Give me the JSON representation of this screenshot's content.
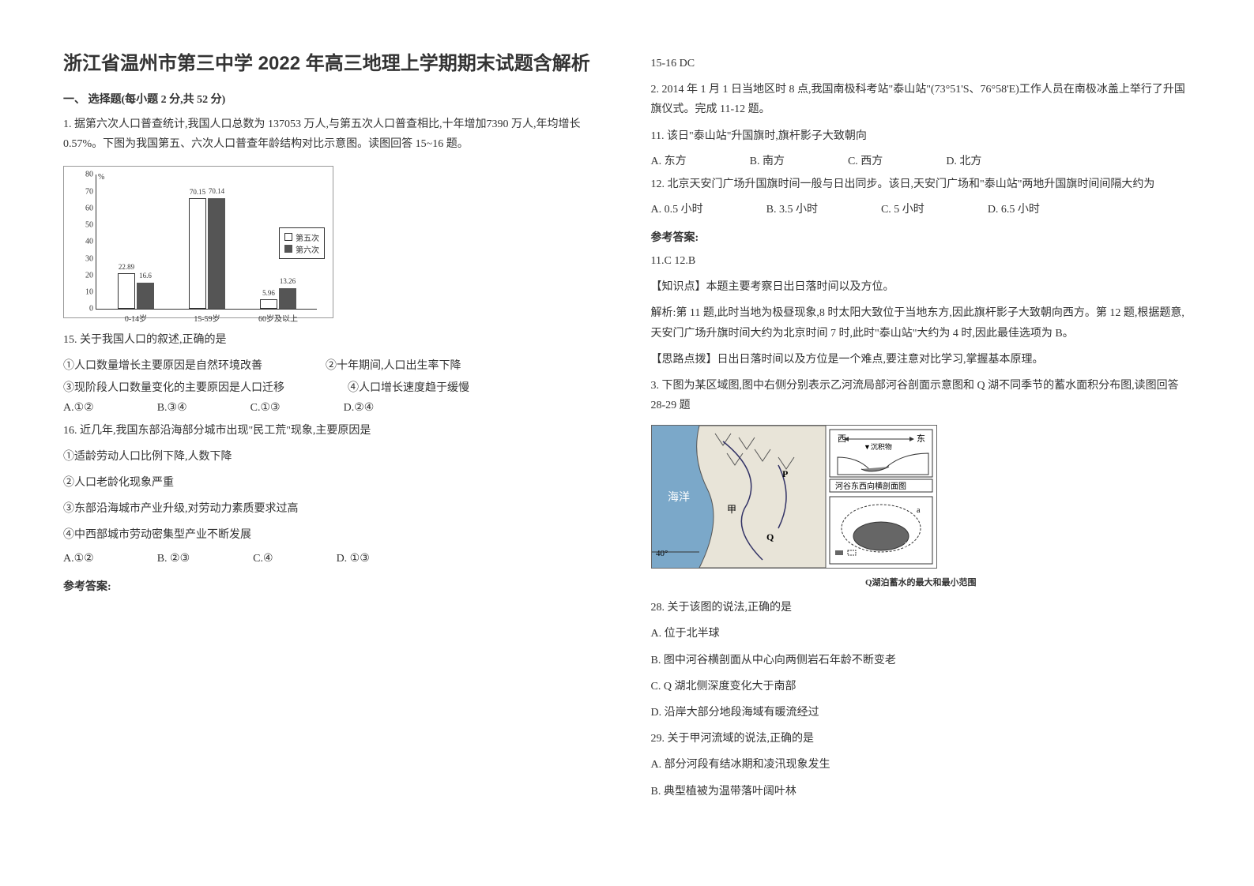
{
  "title": "浙江省温州市第三中学 2022 年高三地理上学期期末试题含解析",
  "section1": "一、 选择题(每小题 2 分,共 52 分)",
  "q1_intro": "1. 据第六次人口普查统计,我国人口总数为 137053 万人,与第五次人口普查相比,十年增加7390 万人,年均增长 0.57%。下图为我国第五、六次人口普查年龄结构对比示意图。读图回答 15~16 题。",
  "chart": {
    "ytitle": "%",
    "ylim": [
      0,
      80
    ],
    "ytick_step": 10,
    "categories": [
      "0-14岁",
      "15-59岁",
      "60岁及以上"
    ],
    "series": [
      {
        "name": "第五次",
        "values": [
          22.89,
          70.15,
          5.96
        ],
        "style": "hollow"
      },
      {
        "name": "第六次",
        "values": [
          16.6,
          70.14,
          13.26
        ],
        "style": "filled"
      }
    ],
    "legend_labels": [
      "第五次",
      "第六次"
    ],
    "bar_height_scale": 2.0
  },
  "q15": {
    "stem": "15. 关于我国人口的叙述,正确的是",
    "s1": "①人口数量增长主要原因是自然环境改善",
    "s2": "②十年期间,人口出生率下降",
    "s3": "③现阶段人口数量变化的主要原因是人口迁移",
    "s4": "④人口增长速度趋于缓慢",
    "A": "A.①②",
    "B": "B.③④",
    "C": "C.①③",
    "D": "D.②④"
  },
  "q16": {
    "stem": "16. 近几年,我国东部沿海部分城市出现\"民工荒\"现象,主要原因是",
    "s1": "①适龄劳动人口比例下降,人数下降",
    "s2": "②人口老龄化现象严重",
    "s3": "③东部沿海城市产业升级,对劳动力素质要求过高",
    "s4": "④中西部城市劳动密集型产业不断发展",
    "A": "A.①②",
    "B": "B. ②③",
    "C": "C.④",
    "D": "D. ①③"
  },
  "ans_label": "参考答案:",
  "ans1": "15-16 DC",
  "q2_intro": "2. 2014 年 1 月 1 日当地区时 8 点,我国南极科考站\"泰山站\"(73°51'S、76°58'E)工作人员在南极冰盖上举行了升国旗仪式。完成 11-12 题。",
  "q11": {
    "stem": "11. 该日\"泰山站\"升国旗时,旗杆影子大致朝向",
    "A": "A. 东方",
    "B": "B. 南方",
    "C": "C. 西方",
    "D": "D. 北方"
  },
  "q12": {
    "stem": "12. 北京天安门广场升国旗时间一般与日出同步。该日,天安门广场和\"泰山站\"两地升国旗时间间隔大约为",
    "A": "A. 0.5 小时",
    "B": "B. 3.5 小时",
    "C": "C. 5 小时",
    "D": "D. 6.5 小时"
  },
  "ans2": {
    "line": "11.C  12.B",
    "k1": "【知识点】本题主要考察日出日落时间以及方位。",
    "k2": "解析:第 11 题,此时当地为极昼现象,8 时太阳大致位于当地东方,因此旗杆影子大致朝向西方。第 12 题,根据题意,天安门广场升旗时间大约为北京时间 7 时,此时\"泰山站\"大约为 4 时,因此最佳选项为 B。",
    "k3": "【思路点拨】日出日落时间以及方位是一个难点,要注意对比学习,掌握基本原理。"
  },
  "q3_intro": "3. 下图为某区域图,图中右侧分别表示乙河流局部河谷剖面示意图和 Q 湖不同季节的蓄水面积分布图,读图回答 28-29 题",
  "map_caption": "Q湖泊蓄水的最大和最小范围",
  "map_labels": {
    "west": "西",
    "east": "东",
    "deposit": "沉积物",
    "section": "河谷东西向横剖面图",
    "ocean": "海洋",
    "jia": "甲",
    "p": "P",
    "q": "Q",
    "lat": "40°",
    "a": "a",
    "b": "b"
  },
  "q28": {
    "stem": "28. 关于该图的说法,正确的是",
    "A": "A. 位于北半球",
    "B": "B. 图中河谷横剖面从中心向两侧岩石年龄不断变老",
    "C": "C. Q 湖北侧深度变化大于南部",
    "D": "D. 沿岸大部分地段海域有暖流经过"
  },
  "q29": {
    "stem": "29. 关于甲河流域的说法,正确的是",
    "A": "A. 部分河段有结冰期和凌汛现象发生",
    "B": "B. 典型植被为温带落叶阔叶林"
  }
}
